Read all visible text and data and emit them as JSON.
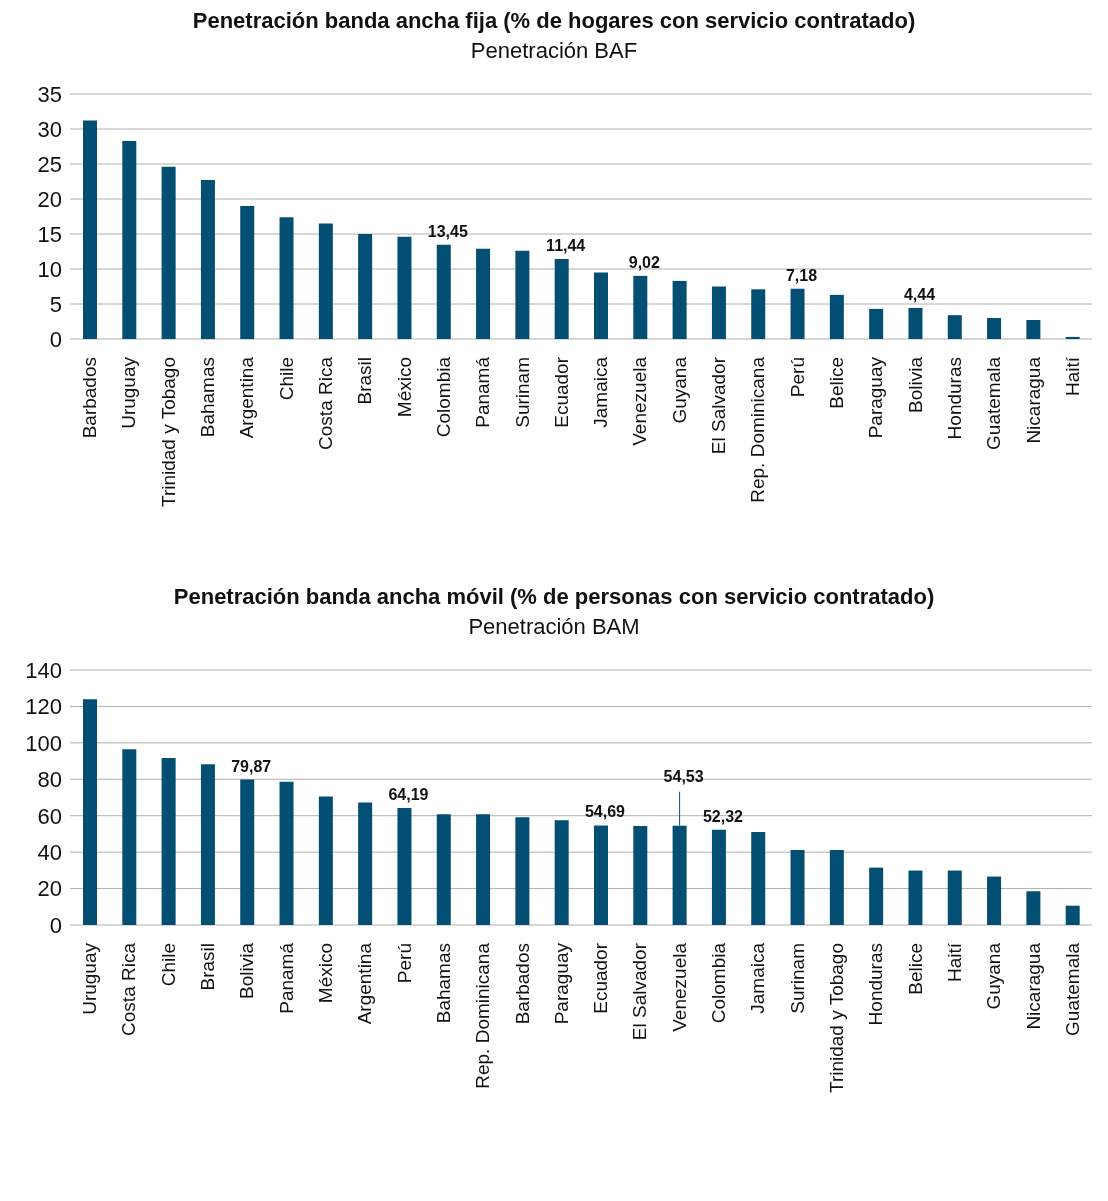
{
  "chart_data": [
    {
      "type": "bar",
      "title": "Penetración banda ancha fija (% de hogares con servicio contratado)",
      "subtitle": "Penetración BAF",
      "categories": [
        "Barbados",
        "Uruguay",
        "Trinidad y Tobago",
        "Bahamas",
        "Argentina",
        "Chile",
        "Costa Rica",
        "Brasil",
        "México",
        "Colombia",
        "Panamá",
        "Surinam",
        "Ecuador",
        "Jamaica",
        "Venezuela",
        "Guyana",
        "El Salvador",
        "Rep. Dominicana",
        "Perú",
        "Belice",
        "Paraguay",
        "Bolivia",
        "Honduras",
        "Guatemala",
        "Nicaragua",
        "Haití"
      ],
      "values": [
        31.2,
        28.3,
        24.6,
        22.7,
        19.0,
        17.4,
        16.5,
        15.0,
        14.6,
        13.45,
        12.9,
        12.6,
        11.44,
        9.5,
        9.02,
        8.3,
        7.5,
        7.1,
        7.18,
        6.3,
        4.3,
        4.44,
        3.4,
        3.0,
        2.7,
        0.3
      ],
      "value_labels": [
        null,
        null,
        null,
        null,
        null,
        null,
        null,
        null,
        null,
        "13,45",
        null,
        null,
        "11,44",
        null,
        "9,02",
        null,
        null,
        null,
        "7,18",
        null,
        null,
        "4,44",
        null,
        null,
        null,
        null
      ],
      "color": "#034f73",
      "ylim": [
        0,
        35
      ],
      "yticks": [
        0,
        5,
        10,
        15,
        20,
        25,
        30,
        35
      ],
      "grid": "y"
    },
    {
      "type": "bar",
      "title": "Penetración banda ancha móvil (% de personas con servicio contratado)",
      "subtitle": "Penetración BAM",
      "categories": [
        "Uruguay",
        "Costa Rica",
        "Chile",
        "Brasil",
        "Bolivia",
        "Panamá",
        "México",
        "Argentina",
        "Perú",
        "Bahamas",
        "Rep. Dominicana",
        "Barbados",
        "Paraguay",
        "Ecuador",
        "El Salvador",
        "Venezuela",
        "Colombia",
        "Jamaica",
        "Surinam",
        "Trinidad y Tobago",
        "Honduras",
        "Belice",
        "Haití",
        "Guyana",
        "Nicaragua",
        "Guatemala"
      ],
      "values": [
        124.0,
        96.5,
        91.7,
        88.3,
        79.87,
        78.6,
        70.6,
        67.2,
        64.19,
        60.8,
        60.8,
        59.2,
        57.5,
        54.69,
        54.3,
        54.53,
        52.32,
        51.0,
        41.2,
        41.2,
        31.5,
        29.9,
        29.9,
        26.6,
        18.5,
        10.6
      ],
      "value_labels": [
        null,
        null,
        null,
        null,
        "79,87",
        null,
        null,
        null,
        "64,19",
        null,
        null,
        null,
        null,
        "54,69",
        null,
        "54,53",
        "52,32",
        null,
        null,
        null,
        null,
        null,
        null,
        null,
        null,
        null
      ],
      "color": "#034f73",
      "ylim": [
        0,
        140
      ],
      "yticks": [
        0,
        20,
        40,
        60,
        80,
        100,
        120,
        140
      ],
      "grid": "y"
    }
  ]
}
